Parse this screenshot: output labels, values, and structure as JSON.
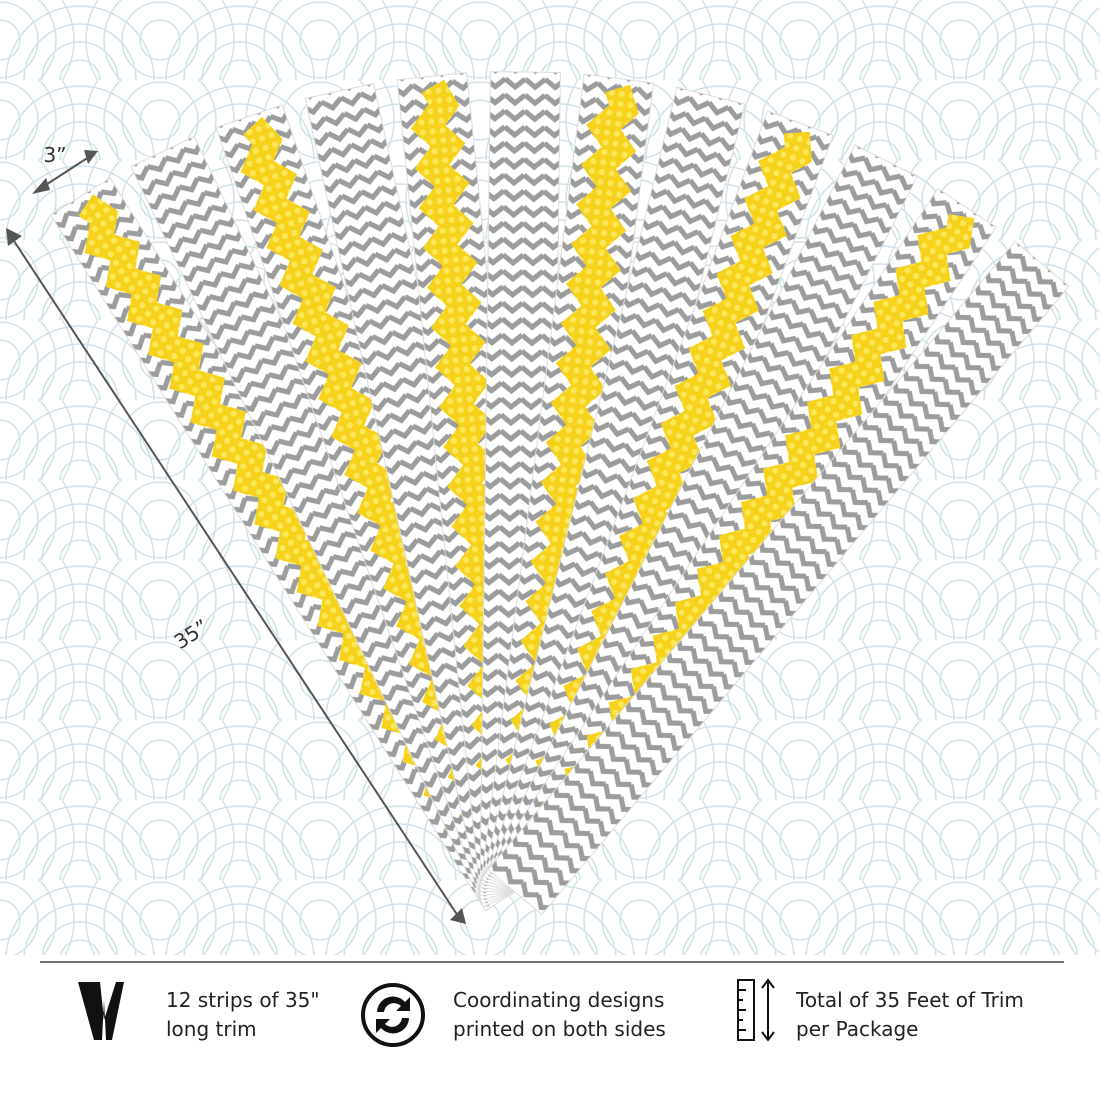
{
  "dimensions": {
    "width": "3”",
    "length": "35”"
  },
  "features": [
    {
      "lines": [
        "12 strips of 35\"",
        "long trim"
      ]
    },
    {
      "lines": [
        "Coordinating designs",
        "printed on both sides"
      ]
    },
    {
      "lines": [
        "Total of 35 Feet of Trim",
        "per Package"
      ]
    }
  ]
}
